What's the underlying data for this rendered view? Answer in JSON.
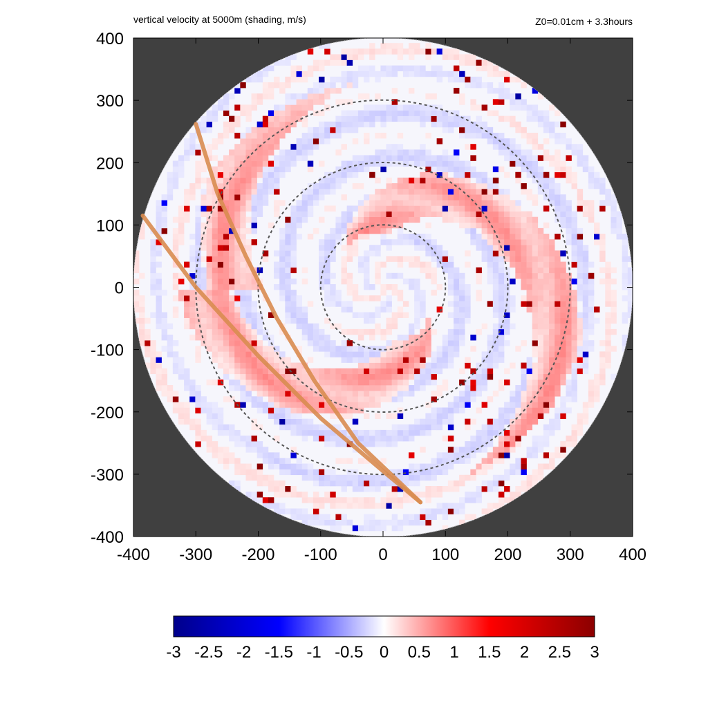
{
  "chart_data": {
    "type": "heatmap",
    "title_left": "vertical velocity at 5000m (shading, m/s)",
    "title_right": "Z0=0.01cm  + 3.3hours",
    "xlabel": "",
    "ylabel": "",
    "xlim": [
      -400,
      400
    ],
    "ylim": [
      -400,
      400
    ],
    "x_ticks": [
      -400,
      -300,
      -200,
      -100,
      0,
      100,
      200,
      300,
      400
    ],
    "y_ticks": [
      -400,
      -300,
      -200,
      -100,
      0,
      100,
      200,
      300,
      400
    ],
    "x_tick_labels": [
      "-400",
      "-300",
      "-200",
      "-100",
      "0",
      "100",
      "200",
      "300",
      "400"
    ],
    "y_tick_labels": [
      "400",
      "300",
      "200",
      "100",
      "0",
      "-100",
      "-200",
      "-300",
      "-400"
    ],
    "domain_radius": 400,
    "background_color": "#404040",
    "range_rings": [
      100,
      200,
      300
    ],
    "colorbar": {
      "min": -3,
      "max": 3,
      "ticks": [
        -3,
        -2.5,
        -2,
        -1.5,
        -1,
        -0.5,
        0,
        0.5,
        1,
        1.5,
        2,
        2.5,
        3
      ],
      "tick_labels": [
        "-3",
        "-2.5",
        "-2",
        "-1.5",
        "-1",
        "-0.5",
        "0",
        "0.5",
        "1",
        "1.5",
        "2",
        "2.5",
        "3"
      ],
      "colors": [
        "#00008b",
        "#0000ff",
        "#ffffff",
        "#ff0000",
        "#8b0000"
      ]
    },
    "tracks": [
      {
        "name": "track-1",
        "color": "#d98c50",
        "points": [
          [
            -300,
            262
          ],
          [
            -265,
            150
          ],
          [
            -220,
            50
          ],
          [
            -170,
            -50
          ],
          [
            -110,
            -150
          ],
          [
            -40,
            -250
          ],
          [
            60,
            -345
          ]
        ]
      },
      {
        "name": "track-2",
        "color": "#d98c50",
        "points": [
          [
            -385,
            115
          ],
          [
            -300,
            0
          ],
          [
            -200,
            -110
          ],
          [
            -100,
            -210
          ],
          [
            0,
            -295
          ],
          [
            60,
            -345
          ]
        ]
      }
    ]
  }
}
